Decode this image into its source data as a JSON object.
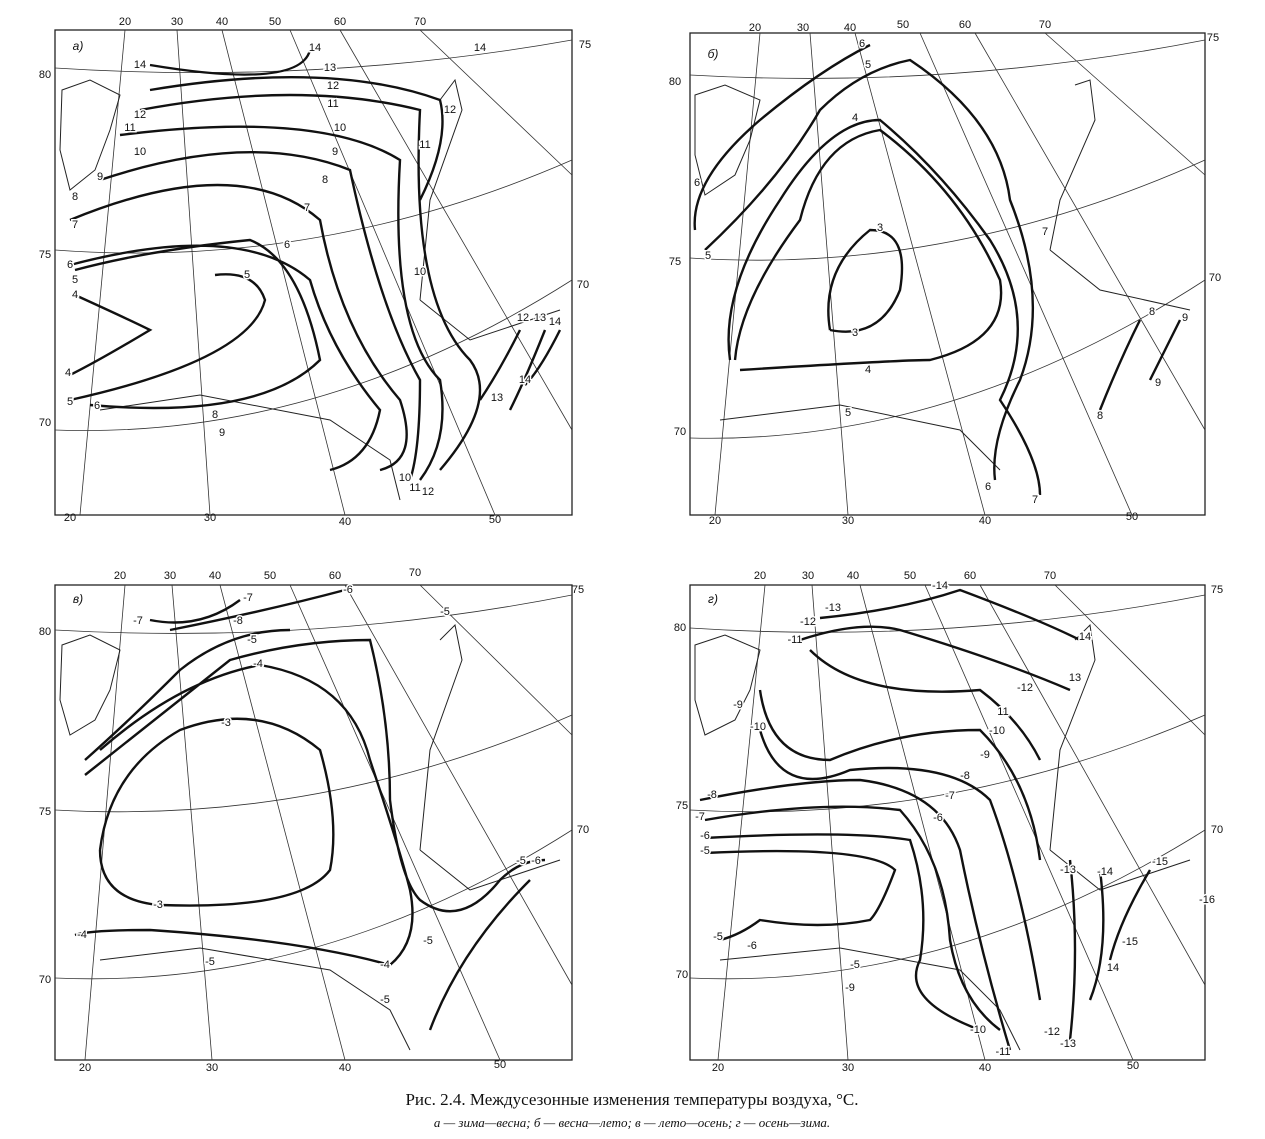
{
  "panels": [
    {
      "label": "а)",
      "lon_top": [
        "20",
        "30",
        "40",
        "50",
        "60",
        "70",
        "75"
      ],
      "lat_left": [
        "80",
        "75",
        "70"
      ],
      "lat_right": [
        "70"
      ],
      "lon_bottom": [
        "20",
        "30",
        "40",
        "50"
      ],
      "contour_labels": [
        "14",
        "14",
        "14",
        "13",
        "12",
        "11",
        "10",
        "9",
        "8",
        "7",
        "6",
        "5",
        "12",
        "11",
        "12",
        "11",
        "10",
        "9",
        "8",
        "7",
        "6",
        "5",
        "4",
        "4",
        "5",
        "6",
        "8",
        "9",
        "10",
        "11",
        "12",
        "12",
        "13",
        "14",
        "14",
        "13",
        "10"
      ]
    },
    {
      "label": "б)",
      "lon_top": [
        "20",
        "30",
        "40",
        "50",
        "60",
        "70",
        "75"
      ],
      "lat_left": [
        "80",
        "75",
        "70"
      ],
      "lat_right": [
        "70"
      ],
      "lon_bottom": [
        "20",
        "30",
        "40",
        "50"
      ],
      "contour_labels": [
        "6",
        "5",
        "4",
        "3",
        "3",
        "4",
        "5",
        "6",
        "5",
        "6",
        "7",
        "7",
        "8",
        "9",
        "9",
        "8"
      ]
    },
    {
      "label": "в)",
      "lon_top": [
        "20",
        "30",
        "40",
        "50",
        "60",
        "70",
        "75"
      ],
      "lat_left": [
        "80",
        "75",
        "70"
      ],
      "lat_right": [
        "70"
      ],
      "lon_bottom": [
        "20",
        "30",
        "40",
        "50"
      ],
      "contour_labels": [
        "-7",
        "-7",
        "-8",
        "-6",
        "-5",
        "-5",
        "-4",
        "-3",
        "-3",
        "-4",
        "-4",
        "-5",
        "-5",
        "-6",
        "-5",
        "-5"
      ]
    },
    {
      "label": "г)",
      "lon_top": [
        "20",
        "30",
        "40",
        "50",
        "60",
        "70",
        "75"
      ],
      "lat_left": [
        "80",
        "75",
        "70"
      ],
      "lat_right": [
        "70"
      ],
      "lon_bottom": [
        "20",
        "30",
        "40",
        "50"
      ],
      "contour_labels": [
        "-14",
        "-13",
        "-12",
        "-11",
        "14",
        "13",
        "-12",
        "11",
        "-10",
        "-9",
        "-8",
        "-7",
        "-6",
        "-9",
        "-10",
        "-8",
        "-7",
        "-6",
        "-5",
        "-5",
        "-6",
        "-5",
        "-9",
        "-10",
        "-11",
        "-12",
        "-13",
        "-13",
        "-14",
        "-15",
        "-16",
        "-15",
        "14"
      ]
    }
  ],
  "caption": {
    "title": "Рис. 2.4. Междусезонные изменения температуры воздуха, °С.",
    "legend": "а — зима—весна; б — весна—лето; в — лето—осень; г — осень—зима."
  }
}
